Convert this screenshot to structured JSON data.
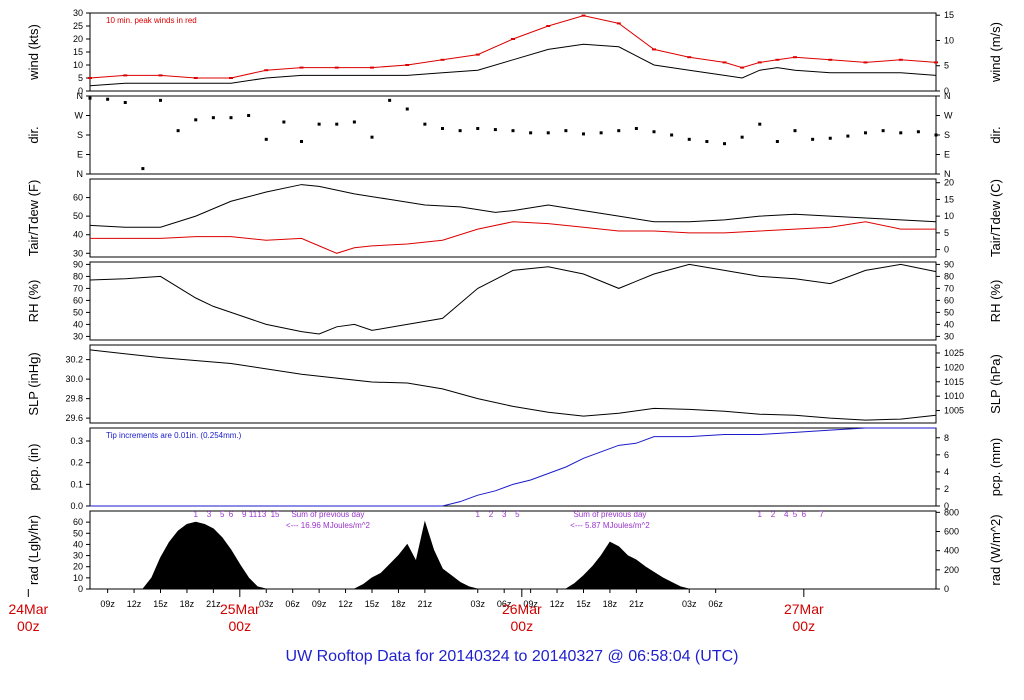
{
  "footer": {
    "title": "UW Rooftop Data for 20140324  to  20140327 @ 06:58:04  (UTC)"
  },
  "colors": {
    "black": "#000000",
    "red": "#dd0000",
    "blue": "#1a1acc",
    "purple": "#9933cc",
    "frame": "#000000"
  },
  "chart_data": [
    {
      "id": "wind",
      "type": "line",
      "ylabel_left": "wind (kts)",
      "ylabel_right": "wind (m/s)",
      "ylim": [
        0,
        30
      ],
      "yticks_left": [
        "0",
        "5",
        "10",
        "15",
        "20",
        "25",
        "30"
      ],
      "yticks_right": [
        "0",
        "5",
        "10",
        "15"
      ],
      "right_values": [
        0,
        5,
        10,
        15
      ],
      "right_to_left": 1.9438,
      "annotation": "10 min. peak winds in red",
      "series": [
        {
          "name": "10 min. peak winds",
          "color": "#dd0000",
          "x": [
            0,
            4,
            8,
            12,
            16,
            20,
            24,
            28,
            32,
            36,
            40,
            44,
            48,
            52,
            56,
            60,
            64,
            68,
            72,
            74,
            76,
            78,
            80,
            84,
            88,
            92,
            96
          ],
          "values": [
            5,
            6,
            6,
            5,
            5,
            8,
            9,
            9,
            9,
            10,
            12,
            14,
            20,
            25,
            29,
            26,
            16,
            13,
            11,
            9,
            11,
            12,
            13,
            12,
            11,
            12,
            11
          ]
        },
        {
          "name": "",
          "color": "#000000",
          "x": [
            0,
            4,
            8,
            12,
            16,
            20,
            24,
            28,
            32,
            36,
            40,
            44,
            48,
            52,
            56,
            60,
            64,
            68,
            72,
            74,
            76,
            78,
            80,
            84,
            88,
            92,
            96
          ],
          "values": [
            2,
            3,
            3,
            3,
            3,
            5,
            6,
            6,
            6,
            6,
            7,
            8,
            12,
            16,
            18,
            17,
            10,
            8,
            6,
            5,
            8,
            9,
            8,
            7,
            7,
            7,
            6
          ]
        }
      ]
    },
    {
      "id": "dir",
      "type": "scatter",
      "ylabel_left": "dir.",
      "ylabel_right": "dir.",
      "ylim": [
        0,
        360
      ],
      "ytick_values": [
        0,
        90,
        180,
        270,
        360
      ],
      "yticks_left": [
        "N",
        "E",
        "S",
        "W",
        "N"
      ],
      "yticks_right": [
        "N",
        "E",
        "S",
        "W",
        "N"
      ],
      "series": [
        {
          "name": "",
          "color": "#000000",
          "x": [
            0,
            2,
            4,
            6,
            8,
            10,
            12,
            14,
            16,
            18,
            20,
            22,
            24,
            26,
            28,
            30,
            32,
            34,
            36,
            38,
            40,
            42,
            44,
            46,
            48,
            50,
            52,
            54,
            56,
            58,
            60,
            62,
            64,
            66,
            68,
            70,
            72,
            74,
            76,
            78,
            80,
            82,
            84,
            86,
            88,
            90,
            92,
            94,
            96
          ],
          "values": [
            350,
            345,
            330,
            25,
            340,
            200,
            250,
            260,
            260,
            270,
            160,
            240,
            150,
            230,
            230,
            240,
            170,
            340,
            300,
            230,
            210,
            200,
            210,
            205,
            200,
            190,
            190,
            200,
            185,
            190,
            200,
            210,
            195,
            180,
            160,
            150,
            140,
            170,
            230,
            150,
            200,
            160,
            165,
            175,
            190,
            200,
            190,
            195,
            180
          ]
        }
      ]
    },
    {
      "id": "temp",
      "type": "line",
      "ylabel_left": "Tair/Tdew (F)",
      "ylabel_right": "Tair/Tdew (C)",
      "ylim": [
        28,
        70
      ],
      "yticks_left": [
        "30",
        "40",
        "50",
        "60"
      ],
      "left_values": [
        30,
        40,
        50,
        60
      ],
      "yticks_right": [
        "0",
        "5",
        "10",
        "15",
        "20"
      ],
      "right_values": [
        0,
        5,
        10,
        15,
        20
      ],
      "right_offset": 32,
      "right_scale": 1.8,
      "series": [
        {
          "name": "Tair",
          "color": "#000000",
          "x": [
            0,
            4,
            8,
            12,
            16,
            20,
            24,
            26,
            30,
            34,
            38,
            42,
            46,
            48,
            52,
            56,
            60,
            64,
            68,
            72,
            76,
            80,
            84,
            88,
            92,
            96
          ],
          "values": [
            45,
            44,
            44,
            50,
            58,
            63,
            67,
            66,
            62,
            59,
            56,
            55,
            52,
            53,
            56,
            53,
            50,
            47,
            47,
            48,
            50,
            51,
            50,
            49,
            48,
            47
          ]
        },
        {
          "name": "Tdew",
          "color": "#dd0000",
          "x": [
            0,
            4,
            8,
            12,
            16,
            20,
            24,
            26,
            28,
            30,
            32,
            36,
            40,
            44,
            48,
            52,
            56,
            60,
            64,
            68,
            72,
            76,
            80,
            84,
            88,
            92,
            96
          ],
          "values": [
            38,
            38,
            38,
            39,
            39,
            37,
            38,
            34,
            30,
            33,
            34,
            35,
            37,
            43,
            47,
            46,
            44,
            42,
            42,
            41,
            41,
            42,
            43,
            44,
            47,
            43,
            43
          ]
        }
      ]
    },
    {
      "id": "rh",
      "type": "line",
      "ylabel_left": "RH (%)",
      "ylabel_right": "RH (%)",
      "ylim": [
        27,
        92
      ],
      "yticks_left": [
        "30",
        "40",
        "50",
        "60",
        "70",
        "80",
        "90"
      ],
      "left_values": [
        30,
        40,
        50,
        60,
        70,
        80,
        90
      ],
      "yticks_right": [
        "30",
        "40",
        "50",
        "60",
        "70",
        "80",
        "90"
      ],
      "right_values": [
        30,
        40,
        50,
        60,
        70,
        80,
        90
      ],
      "series": [
        {
          "name": "",
          "color": "#000000",
          "x": [
            0,
            4,
            8,
            12,
            14,
            16,
            20,
            24,
            26,
            28,
            30,
            32,
            36,
            40,
            44,
            48,
            52,
            56,
            60,
            64,
            68,
            72,
            76,
            80,
            84,
            88,
            92,
            96
          ],
          "values": [
            77,
            78,
            80,
            62,
            55,
            50,
            40,
            34,
            32,
            38,
            40,
            35,
            40,
            45,
            70,
            85,
            88,
            82,
            70,
            82,
            90,
            85,
            80,
            78,
            74,
            85,
            90,
            84
          ]
        }
      ]
    },
    {
      "id": "slp",
      "type": "line",
      "ylabel_left": "SLP (inHg)",
      "ylabel_right": "SLP (hPa)",
      "ylim": [
        29.55,
        30.35
      ],
      "yticks_left": [
        "29.6",
        "29.8",
        "30.0",
        "30.2"
      ],
      "left_values": [
        29.6,
        29.8,
        30.0,
        30.2
      ],
      "yticks_right": [
        "1005",
        "1010",
        "1015",
        "1020",
        "1025"
      ],
      "right_values": [
        1005,
        1010,
        1015,
        1020,
        1025
      ],
      "right_to_left": 0.02953,
      "series": [
        {
          "name": "",
          "color": "#000000",
          "x": [
            0,
            8,
            16,
            24,
            32,
            36,
            40,
            44,
            48,
            52,
            56,
            60,
            64,
            68,
            72,
            76,
            80,
            84,
            88,
            92,
            96
          ],
          "values": [
            30.3,
            30.22,
            30.16,
            30.05,
            29.97,
            29.96,
            29.9,
            29.8,
            29.72,
            29.66,
            29.62,
            29.65,
            29.7,
            29.69,
            29.67,
            29.64,
            29.63,
            29.6,
            29.58,
            29.59,
            29.63
          ]
        }
      ]
    },
    {
      "id": "pcp",
      "type": "line",
      "ylabel_left": "pcp. (in)",
      "ylabel_right": "pcp. (mm)",
      "ylim": [
        0,
        0.36
      ],
      "yticks_left": [
        "0.0",
        "0.1",
        "0.2",
        "0.3"
      ],
      "left_values": [
        0,
        0.1,
        0.2,
        0.3
      ],
      "yticks_right": [
        "0",
        "2",
        "4",
        "6",
        "8"
      ],
      "right_values": [
        0,
        2,
        4,
        6,
        8
      ],
      "right_to_left": 0.03937,
      "annotation": "Tip increments are 0.01in. (0.254mm.)",
      "series": [
        {
          "name": "",
          "color": "#1a1acc",
          "x": [
            0,
            40,
            42,
            44,
            46,
            48,
            50,
            52,
            54,
            56,
            58,
            60,
            62,
            64,
            66,
            68,
            72,
            76,
            80,
            84,
            88,
            92,
            96
          ],
          "values": [
            0,
            0,
            0.02,
            0.05,
            0.07,
            0.1,
            0.12,
            0.15,
            0.18,
            0.22,
            0.25,
            0.28,
            0.29,
            0.32,
            0.32,
            0.32,
            0.33,
            0.33,
            0.34,
            0.35,
            0.36,
            0.36,
            0.36
          ]
        }
      ]
    },
    {
      "id": "rad",
      "type": "area",
      "ylabel_left": "rad (Lgly/hr)",
      "ylabel_right": "rad (W/m^2)",
      "ylim": [
        0,
        70
      ],
      "yticks_left": [
        "0",
        "10",
        "20",
        "30",
        "40",
        "50",
        "60"
      ],
      "left_values": [
        0,
        10,
        20,
        30,
        40,
        50,
        60
      ],
      "yticks_right": [
        "0",
        "200",
        "400",
        "600",
        "800"
      ],
      "right_values": [
        0,
        200,
        400,
        600,
        800
      ],
      "right_to_left": 0.086,
      "series": [
        {
          "name": "",
          "color": "#000000",
          "x": [
            0,
            6,
            7,
            8,
            9,
            10,
            11,
            12,
            13,
            14,
            15,
            16,
            17,
            18,
            19,
            20,
            30,
            31,
            32,
            33,
            34,
            35,
            36,
            37,
            38,
            39,
            40,
            41,
            42,
            43,
            44,
            54,
            55,
            56,
            57,
            58,
            59,
            60,
            61,
            62,
            63,
            64,
            65,
            66,
            67,
            68,
            96
          ],
          "values": [
            0,
            0,
            10,
            28,
            42,
            52,
            58,
            60,
            58,
            54,
            46,
            35,
            22,
            10,
            2,
            0,
            0,
            4,
            10,
            14,
            22,
            30,
            40,
            25,
            60,
            35,
            18,
            12,
            6,
            2,
            0,
            0,
            5,
            12,
            20,
            30,
            42,
            38,
            30,
            26,
            20,
            15,
            10,
            6,
            2,
            0,
            0
          ]
        }
      ],
      "day_sums": [
        {
          "text": "Sum of previous day",
          "value": "<--- 16.96 MJoules/m^2"
        },
        {
          "text": "Sum of previous day",
          "value": "<--- 5.87 MJoules/m^2"
        }
      ],
      "hour_marks": [
        "1",
        "3",
        "5",
        "6",
        "9",
        "11",
        "13",
        "15",
        "1",
        "2",
        "3",
        "5",
        "1",
        "2",
        "4",
        "5",
        "6",
        "7"
      ]
    }
  ],
  "time_axis": {
    "hour_labels": [
      "09z",
      "12z",
      "15z",
      "18z",
      "21z",
      "03z",
      "06z",
      "09z",
      "12z",
      "15z",
      "18z",
      "21z",
      "03z",
      "06z",
      "09z",
      "12z",
      "15z",
      "18z",
      "21z",
      "03z",
      "06z"
    ],
    "day_labels": [
      {
        "month": "25Mar",
        "hour": "00z"
      },
      {
        "month": "26Mar",
        "hour": "00z"
      },
      {
        "month": "27Mar",
        "hour": "00z"
      },
      {
        "month": "24Mar",
        "hour": "00z"
      }
    ]
  }
}
